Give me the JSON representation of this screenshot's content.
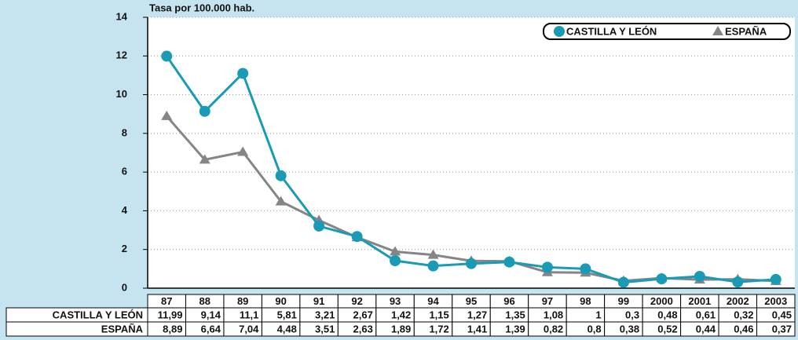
{
  "chart_data": {
    "type": "line",
    "subtitle": "Tasa por 100.000 hab.",
    "categories": [
      "87",
      "88",
      "89",
      "90",
      "91",
      "92",
      "93",
      "94",
      "95",
      "96",
      "97",
      "98",
      "99",
      "2000",
      "2001",
      "2002",
      "2003"
    ],
    "series": [
      {
        "name": "CASTILLA Y LEÓN",
        "color": "#1a9bb5",
        "marker": "circle",
        "values": [
          11.99,
          9.14,
          11.1,
          5.81,
          3.21,
          2.67,
          1.42,
          1.15,
          1.27,
          1.35,
          1.08,
          1,
          0.3,
          0.48,
          0.61,
          0.32,
          0.45
        ],
        "value_labels": [
          "11,99",
          "9,14",
          "11,1",
          "5,81",
          "3,21",
          "2,67",
          "1,42",
          "1,15",
          "1,27",
          "1,35",
          "1,08",
          "1",
          "0,3",
          "0,48",
          "0,61",
          "0,32",
          "0,45"
        ]
      },
      {
        "name": "ESPAÑA",
        "color": "#858585",
        "marker": "triangle",
        "values": [
          8.89,
          6.64,
          7.04,
          4.48,
          3.51,
          2.63,
          1.89,
          1.72,
          1.41,
          1.39,
          0.82,
          0.8,
          0.38,
          0.52,
          0.44,
          0.46,
          0.37
        ],
        "value_labels": [
          "8,89",
          "6,64",
          "7,04",
          "4,48",
          "3,51",
          "2,63",
          "1,89",
          "1,72",
          "1,41",
          "1,39",
          "0,82",
          "0,8",
          "0,38",
          "0,52",
          "0,44",
          "0,46",
          "0,37"
        ]
      }
    ],
    "ylim": [
      0,
      14
    ],
    "yticks": [
      0,
      2,
      4,
      6,
      8,
      10,
      12,
      14
    ],
    "grid": true,
    "legend": "top-right"
  }
}
